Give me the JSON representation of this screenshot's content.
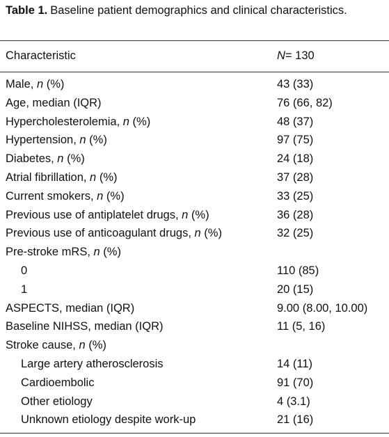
{
  "caption": {
    "label": "Table 1.",
    "text": "Baseline patient demographics and clinical characteristics."
  },
  "table": {
    "header": [
      {
        "parts": [
          "Characteristic"
        ],
        "italic": []
      },
      {
        "parts": [
          "N",
          "= 130"
        ],
        "italic": [
          0
        ]
      }
    ],
    "rows": [
      {
        "indent": 0,
        "label": {
          "parts": [
            "Male, ",
            "n",
            " (%)"
          ],
          "italic": [
            1
          ]
        },
        "value": "43 (33)"
      },
      {
        "indent": 0,
        "label": {
          "parts": [
            "Age, median (IQR)"
          ],
          "italic": []
        },
        "value": "76 (66, 82)"
      },
      {
        "indent": 0,
        "label": {
          "parts": [
            "Hypercholesterolemia, ",
            "n",
            " (%)"
          ],
          "italic": [
            1
          ]
        },
        "value": "48 (37)"
      },
      {
        "indent": 0,
        "label": {
          "parts": [
            "Hypertension, ",
            "n",
            " (%)"
          ],
          "italic": [
            1
          ]
        },
        "value": "97 (75)"
      },
      {
        "indent": 0,
        "label": {
          "parts": [
            "Diabetes, ",
            "n",
            " (%)"
          ],
          "italic": [
            1
          ]
        },
        "value": "24 (18)"
      },
      {
        "indent": 0,
        "label": {
          "parts": [
            "Atrial fibrillation, ",
            "n",
            " (%)"
          ],
          "italic": [
            1
          ]
        },
        "value": "37 (28)"
      },
      {
        "indent": 0,
        "label": {
          "parts": [
            "Current smokers, ",
            "n",
            " (%)"
          ],
          "italic": [
            1
          ]
        },
        "value": "33 (25)"
      },
      {
        "indent": 0,
        "label": {
          "parts": [
            "Previous use of antiplatelet drugs, ",
            "n",
            " (%)"
          ],
          "italic": [
            1
          ]
        },
        "value": "36 (28)"
      },
      {
        "indent": 0,
        "label": {
          "parts": [
            "Previous use of anticoagulant drugs, ",
            "n",
            " (%)"
          ],
          "italic": [
            1
          ]
        },
        "value": "32 (25)"
      },
      {
        "indent": 0,
        "label": {
          "parts": [
            "Pre-stroke mRS, ",
            "n",
            " (%)"
          ],
          "italic": [
            1
          ]
        }
      },
      {
        "indent": 1,
        "label": {
          "parts": [
            "0"
          ],
          "italic": []
        },
        "value": "110 (85)"
      },
      {
        "indent": 1,
        "label": {
          "parts": [
            "1"
          ],
          "italic": []
        },
        "value": "20 (15)"
      },
      {
        "indent": 0,
        "label": {
          "parts": [
            "ASPECTS, median (IQR)"
          ],
          "italic": []
        },
        "value": "9.00 (8.00, 10.00)"
      },
      {
        "indent": 0,
        "label": {
          "parts": [
            "Baseline NIHSS, median (IQR)"
          ],
          "italic": []
        },
        "value": "11 (5, 16)"
      },
      {
        "indent": 0,
        "label": {
          "parts": [
            "Stroke cause, ",
            "n",
            " (%)"
          ],
          "italic": [
            1
          ]
        }
      },
      {
        "indent": 1,
        "label": {
          "parts": [
            "Large artery atherosclerosis"
          ],
          "italic": []
        },
        "value": "14 (11)"
      },
      {
        "indent": 1,
        "label": {
          "parts": [
            "Cardioembolic"
          ],
          "italic": []
        },
        "value": "91 (70)"
      },
      {
        "indent": 1,
        "label": {
          "parts": [
            "Other etiology"
          ],
          "italic": []
        },
        "value": "4 (3.1)"
      },
      {
        "indent": 1,
        "label": {
          "parts": [
            "Unknown etiology despite work-up"
          ],
          "italic": []
        },
        "value": "21 (16)"
      }
    ]
  }
}
